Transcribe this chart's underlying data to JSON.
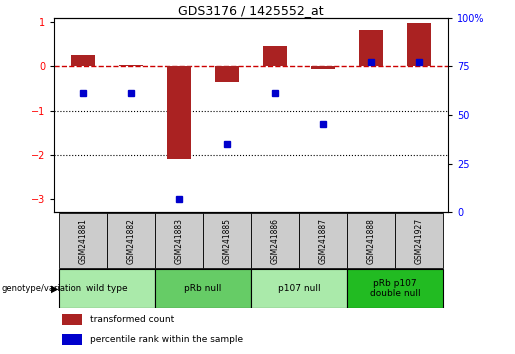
{
  "title": "GDS3176 / 1425552_at",
  "samples": [
    "GSM241881",
    "GSM241882",
    "GSM241883",
    "GSM241885",
    "GSM241886",
    "GSM241887",
    "GSM241888",
    "GSM241927"
  ],
  "red_bars": [
    0.25,
    0.03,
    -2.1,
    -0.35,
    0.45,
    -0.05,
    0.82,
    0.98
  ],
  "blue_dots_left_axis": [
    -0.6,
    -0.6,
    -3.0,
    -1.75,
    -0.6,
    -1.3,
    0.1,
    0.1
  ],
  "ylim_left": [
    -3.3,
    1.1
  ],
  "ylim_right": [
    0,
    100
  ],
  "left_yticks": [
    -3,
    -2,
    -1,
    0,
    1
  ],
  "right_yticks": [
    0,
    25,
    50,
    75,
    100
  ],
  "hline_y": 0,
  "dotted_lines": [
    -1,
    -2
  ],
  "groups": [
    {
      "label": "wild type",
      "samples": [
        0,
        1
      ],
      "color": "#AAEAAA"
    },
    {
      "label": "pRb null",
      "samples": [
        2,
        3
      ],
      "color": "#66CC66"
    },
    {
      "label": "p107 null",
      "samples": [
        4,
        5
      ],
      "color": "#AAEAAA"
    },
    {
      "label": "pRb p107\ndouble null",
      "samples": [
        6,
        7
      ],
      "color": "#22BB22"
    }
  ],
  "legend_items": [
    {
      "label": "transformed count",
      "color": "#AA2222"
    },
    {
      "label": "percentile rank within the sample",
      "color": "#0000CC"
    }
  ],
  "bar_color": "#AA2222",
  "dot_color": "#0000CC",
  "dashed_line_color": "#CC0000",
  "sample_box_color": "#CCCCCC",
  "group_border_color": "#000000"
}
